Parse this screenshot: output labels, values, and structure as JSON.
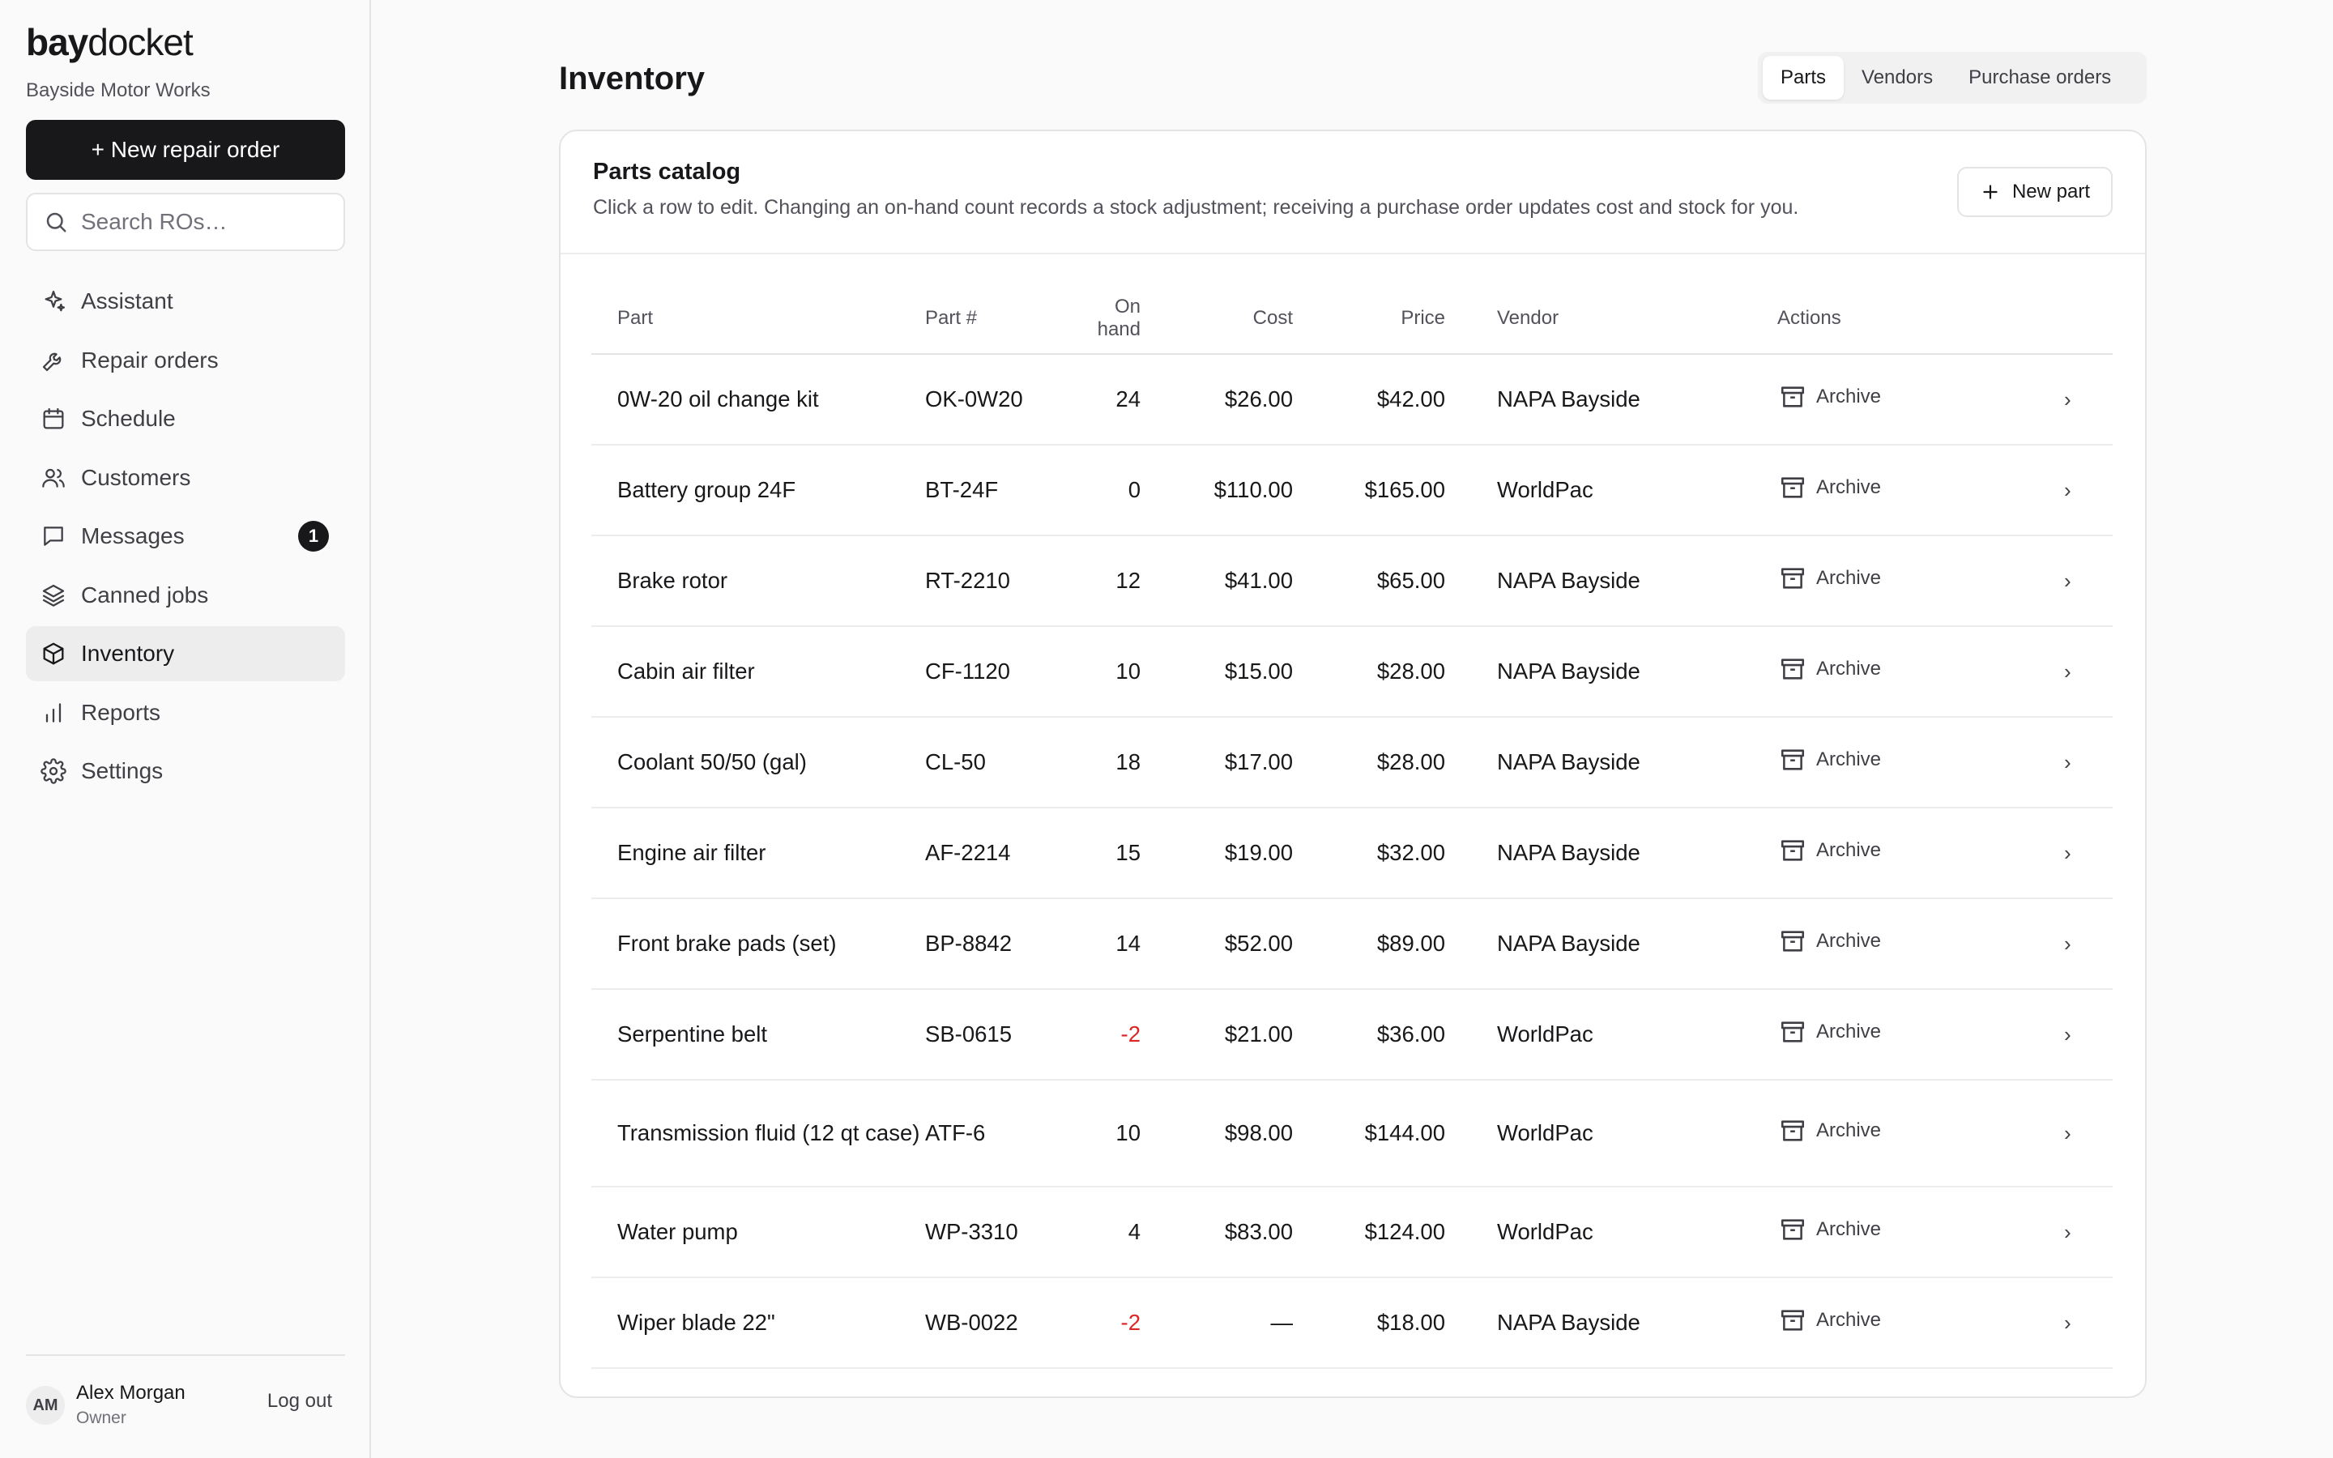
{
  "brand": {
    "bold": "bay",
    "rest": "docket"
  },
  "shop_name": "Bayside Motor Works",
  "new_repair_order": {
    "icon": "plus-icon",
    "label": "+ New repair order"
  },
  "search": {
    "placeholder": "Search ROs…",
    "value": ""
  },
  "nav": [
    {
      "label": "Assistant",
      "icon": "sparkles-icon"
    },
    {
      "label": "Repair orders",
      "icon": "wrench-icon"
    },
    {
      "label": "Schedule",
      "icon": "calendar-icon"
    },
    {
      "label": "Customers",
      "icon": "users-icon"
    },
    {
      "label": "Messages",
      "icon": "message-icon",
      "badge": "1"
    },
    {
      "label": "Canned jobs",
      "icon": "layers-icon"
    },
    {
      "label": "Inventory",
      "icon": "box-icon",
      "active": true
    },
    {
      "label": "Reports",
      "icon": "bar-chart-icon"
    },
    {
      "label": "Settings",
      "icon": "gear-icon"
    }
  ],
  "user": {
    "initials": "AM",
    "name": "Alex Morgan",
    "role": "Owner",
    "logout": "Log out"
  },
  "page_title": "Inventory",
  "tabs": [
    {
      "label": "Parts",
      "active": true
    },
    {
      "label": "Vendors"
    },
    {
      "label": "Purchase orders"
    }
  ],
  "catalog": {
    "title": "Parts catalog",
    "subtitle": "Click a row to edit. Changing an on-hand count records a stock adjustment; receiving a purchase order updates cost and stock for you.",
    "new_part": "New part",
    "columns": [
      "Part",
      "Part #",
      "On hand",
      "Cost",
      "Price",
      "Vendor",
      "Actions"
    ],
    "archive_label": "Archive",
    "rows": [
      {
        "part": "0W-20 oil change kit",
        "num": "OK-0W20",
        "on_hand": "24",
        "cost": "$26.00",
        "price": "$42.00",
        "vendor": "NAPA Bayside"
      },
      {
        "part": "Battery group 24F",
        "num": "BT-24F",
        "on_hand": "0",
        "cost": "$110.00",
        "price": "$165.00",
        "vendor": "WorldPac"
      },
      {
        "part": "Brake rotor",
        "num": "RT-2210",
        "on_hand": "12",
        "cost": "$41.00",
        "price": "$65.00",
        "vendor": "NAPA Bayside"
      },
      {
        "part": "Cabin air filter",
        "num": "CF-1120",
        "on_hand": "10",
        "cost": "$15.00",
        "price": "$28.00",
        "vendor": "NAPA Bayside"
      },
      {
        "part": "Coolant 50/50 (gal)",
        "num": "CL-50",
        "on_hand": "18",
        "cost": "$17.00",
        "price": "$28.00",
        "vendor": "NAPA Bayside"
      },
      {
        "part": "Engine air filter",
        "num": "AF-2214",
        "on_hand": "15",
        "cost": "$19.00",
        "price": "$32.00",
        "vendor": "NAPA Bayside"
      },
      {
        "part": "Front brake pads (set)",
        "num": "BP-8842",
        "on_hand": "14",
        "cost": "$52.00",
        "price": "$89.00",
        "vendor": "NAPA Bayside"
      },
      {
        "part": "Serpentine belt",
        "num": "SB-0615",
        "on_hand": "-2",
        "cost": "$21.00",
        "price": "$36.00",
        "vendor": "WorldPac",
        "negative": true
      },
      {
        "part": "Transmission fluid (12 qt case)",
        "num": "ATF-6",
        "on_hand": "10",
        "cost": "$98.00",
        "price": "$144.00",
        "vendor": "WorldPac",
        "tall": true
      },
      {
        "part": "Water pump",
        "num": "WP-3310",
        "on_hand": "4",
        "cost": "$83.00",
        "price": "$124.00",
        "vendor": "WorldPac"
      },
      {
        "part": "Wiper blade 22\"",
        "num": "WB-0022",
        "on_hand": "-2",
        "cost": "—",
        "price": "$18.00",
        "vendor": "NAPA Bayside",
        "negative": true
      }
    ]
  },
  "colors": {
    "accent": "#18181b",
    "negative": "#dc2626",
    "active_nav": "#ededee"
  }
}
